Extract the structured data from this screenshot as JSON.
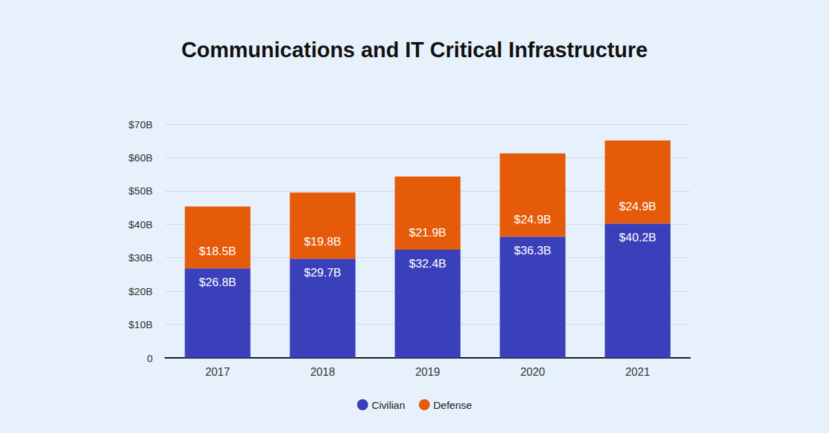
{
  "chart_data": {
    "type": "bar",
    "title": "Communications and IT Critical Infrastructure",
    "categories": [
      "2017",
      "2018",
      "2019",
      "2020",
      "2021"
    ],
    "series": [
      {
        "name": "Civilian",
        "color": "#3a3fba",
        "values": [
          26.8,
          29.7,
          32.4,
          36.3,
          40.2
        ],
        "value_labels": [
          "$26.8B",
          "$29.7B",
          "$32.4B",
          "$36.3B",
          "$40.2B"
        ]
      },
      {
        "name": "Defense",
        "color": "#e65b0a",
        "values": [
          18.5,
          19.8,
          21.9,
          24.9,
          24.9
        ],
        "value_labels": [
          "$18.5B",
          "$19.8B",
          "$21.9B",
          "$24.9B",
          "$24.9B"
        ]
      }
    ],
    "ylim": [
      0,
      70
    ],
    "yticks": [
      0,
      {
        "value": 10,
        "label": "$10B"
      },
      {
        "value": 20,
        "label": "$20B"
      },
      {
        "value": 30,
        "label": "$30B"
      },
      {
        "value": 40,
        "label": "$40B"
      },
      {
        "value": 50,
        "label": "$50B"
      },
      {
        "value": 60,
        "label": "$60B"
      },
      {
        "value": 70,
        "label": "$70B"
      }
    ],
    "grid": true,
    "stacked": true,
    "data_labels": true,
    "legend": "bottom"
  }
}
